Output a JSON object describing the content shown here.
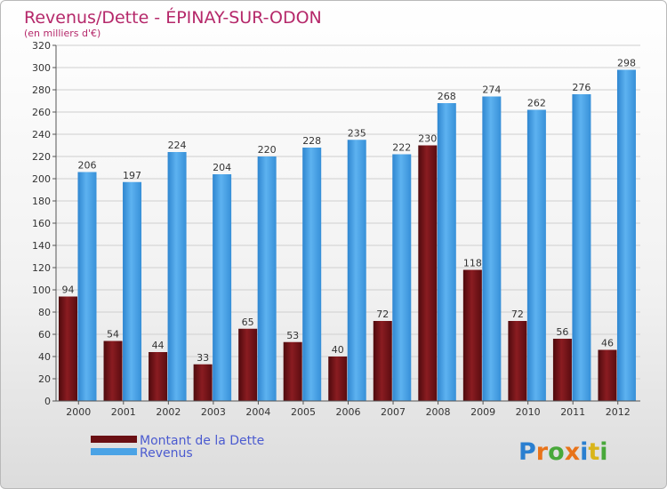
{
  "chart_data": {
    "type": "bar",
    "title": "Revenus/Dette - ÉPINAY-SUR-ODON",
    "subtitle": "(en milliers d'€)",
    "categories": [
      "2000",
      "2001",
      "2002",
      "2003",
      "2004",
      "2005",
      "2006",
      "2007",
      "2008",
      "2009",
      "2010",
      "2011",
      "2012"
    ],
    "series": [
      {
        "name": "Montant de la Dette",
        "color": "#7a1418",
        "values": [
          94,
          54,
          44,
          33,
          65,
          53,
          40,
          72,
          230,
          118,
          72,
          56,
          46
        ]
      },
      {
        "name": "Revenus",
        "color": "#4aa3e6",
        "values": [
          206,
          197,
          224,
          204,
          220,
          228,
          235,
          222,
          268,
          274,
          262,
          276,
          298
        ]
      }
    ],
    "ylim": [
      0,
      320
    ],
    "yticks": [
      0,
      20,
      40,
      60,
      80,
      100,
      120,
      140,
      160,
      180,
      200,
      220,
      240,
      260,
      280,
      300,
      320
    ],
    "grid": true,
    "legend_position": "bottom-left"
  },
  "branding": {
    "logo_text": "Proxiti"
  }
}
